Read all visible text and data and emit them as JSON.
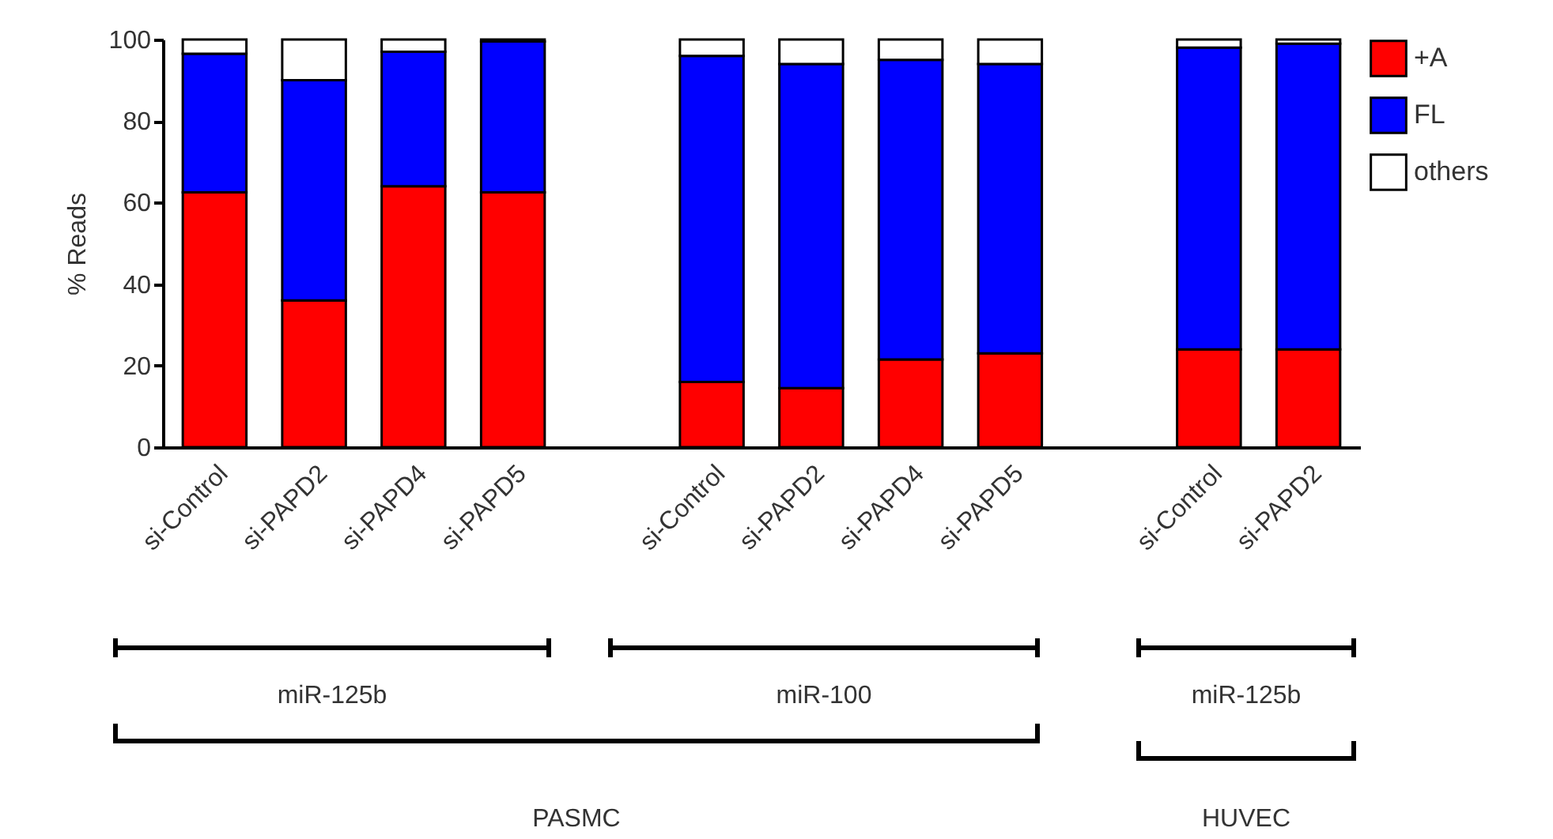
{
  "chart_data": {
    "type": "bar",
    "stacked": true,
    "ylabel": "% Reads",
    "categories": [
      "si-Control",
      "si-PAPD2",
      "si-PAPD4",
      "si-PAPD5",
      null,
      "si-Control",
      "si-PAPD2",
      "si-PAPD4",
      "si-PAPD5",
      null,
      "si-Control",
      "si-PAPD2"
    ],
    "series": [
      {
        "name": "+A",
        "color": "#ff0000",
        "values": [
          62.5,
          36,
          64,
          62.5,
          null,
          16,
          14.5,
          21.5,
          23,
          null,
          24,
          24
        ]
      },
      {
        "name": "FL",
        "color": "#0000ff",
        "values": [
          34,
          54,
          33,
          37,
          null,
          80,
          79.5,
          73.5,
          71,
          null,
          74,
          75
        ]
      },
      {
        "name": "others",
        "color": "#ffffff",
        "values": [
          3.5,
          10,
          3,
          0.5,
          null,
          4,
          6,
          5,
          6,
          null,
          2,
          1
        ]
      }
    ],
    "ylim": [
      0,
      100
    ],
    "yticks": [
      0,
      20,
      40,
      60,
      80,
      100
    ],
    "grid": false,
    "legend": "right",
    "annotations": [
      "miR-125b",
      "miR-100",
      "miR-125b",
      "PASMC",
      "HUVEC"
    ]
  }
}
